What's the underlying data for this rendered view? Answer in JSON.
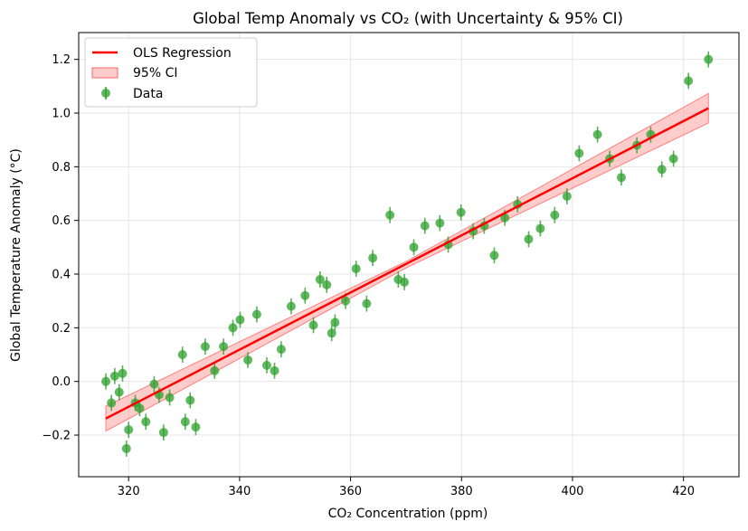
{
  "chart_data": {
    "type": "scatter",
    "title": "Global Temp Anomaly vs CO₂ (with Uncertainty & 95% CI)",
    "xlabel": "CO₂ Concentration (ppm)",
    "ylabel": "Global Temperature Anomaly (°C)",
    "xlim": [
      311,
      430
    ],
    "ylim": [
      -0.355,
      1.3
    ],
    "xticks": [
      320,
      340,
      360,
      380,
      400,
      420
    ],
    "yticks": [
      -0.2,
      0.0,
      0.2,
      0.4,
      0.6,
      0.8,
      1.0,
      1.2
    ],
    "ytick_labels": [
      "−0.2",
      "0.0",
      "0.2",
      "0.4",
      "0.6",
      "0.8",
      "1.0",
      "1.2"
    ],
    "grid": true,
    "legend_position": "top-left",
    "legend": [
      "OLS Regression",
      "95% CI",
      "Data"
    ],
    "colors": {
      "regression": "#ff0000",
      "ci": "#ff9999",
      "points": "#2ca02c"
    },
    "series": [
      {
        "name": "Data",
        "type": "errorbar",
        "x": [
          315.9,
          316.9,
          317.5,
          318.3,
          318.9,
          319.6,
          320.0,
          321.2,
          322.0,
          323.1,
          324.6,
          325.5,
          326.3,
          327.4,
          329.7,
          330.2,
          331.1,
          332.1,
          333.8,
          335.5,
          337.1,
          338.8,
          340.1,
          341.5,
          343.1,
          344.9,
          346.3,
          347.5,
          349.3,
          351.8,
          353.3,
          354.5,
          355.7,
          356.6,
          357.2,
          359.1,
          361.0,
          362.9,
          364.0,
          367.1,
          368.6,
          369.7,
          371.4,
          373.4,
          376.1,
          377.6,
          379.9,
          382.1,
          384.1,
          385.9,
          387.8,
          390.1,
          392.1,
          394.2,
          396.8,
          399.0,
          401.2,
          404.5,
          406.7,
          408.8,
          411.6,
          414.1,
          416.1,
          418.2,
          420.9,
          424.5
        ],
        "y": [
          0.0,
          -0.08,
          0.02,
          -0.04,
          0.03,
          -0.25,
          -0.18,
          -0.08,
          -0.1,
          -0.15,
          -0.01,
          -0.05,
          -0.19,
          -0.06,
          0.1,
          -0.15,
          -0.07,
          -0.17,
          0.13,
          0.04,
          0.13,
          0.2,
          0.23,
          0.08,
          0.25,
          0.06,
          0.04,
          0.12,
          0.28,
          0.32,
          0.21,
          0.38,
          0.36,
          0.18,
          0.22,
          0.3,
          0.42,
          0.29,
          0.46,
          0.62,
          0.38,
          0.37,
          0.5,
          0.58,
          0.59,
          0.51,
          0.63,
          0.56,
          0.58,
          0.47,
          0.61,
          0.66,
          0.53,
          0.57,
          0.62,
          0.69,
          0.85,
          0.92,
          0.83,
          0.76,
          0.88,
          0.92,
          0.79,
          0.83,
          1.12,
          1.2
        ],
        "yerr": 0.03
      },
      {
        "name": "OLS Regression",
        "type": "line",
        "x": [
          315.9,
          424.5
        ],
        "y": [
          -0.138,
          1.018
        ]
      },
      {
        "name": "95% CI",
        "type": "band",
        "x": [
          315.9,
          370.2,
          424.5
        ],
        "lower": [
          -0.185,
          0.425,
          0.963
        ],
        "upper": [
          -0.092,
          0.449,
          1.073
        ]
      }
    ]
  }
}
